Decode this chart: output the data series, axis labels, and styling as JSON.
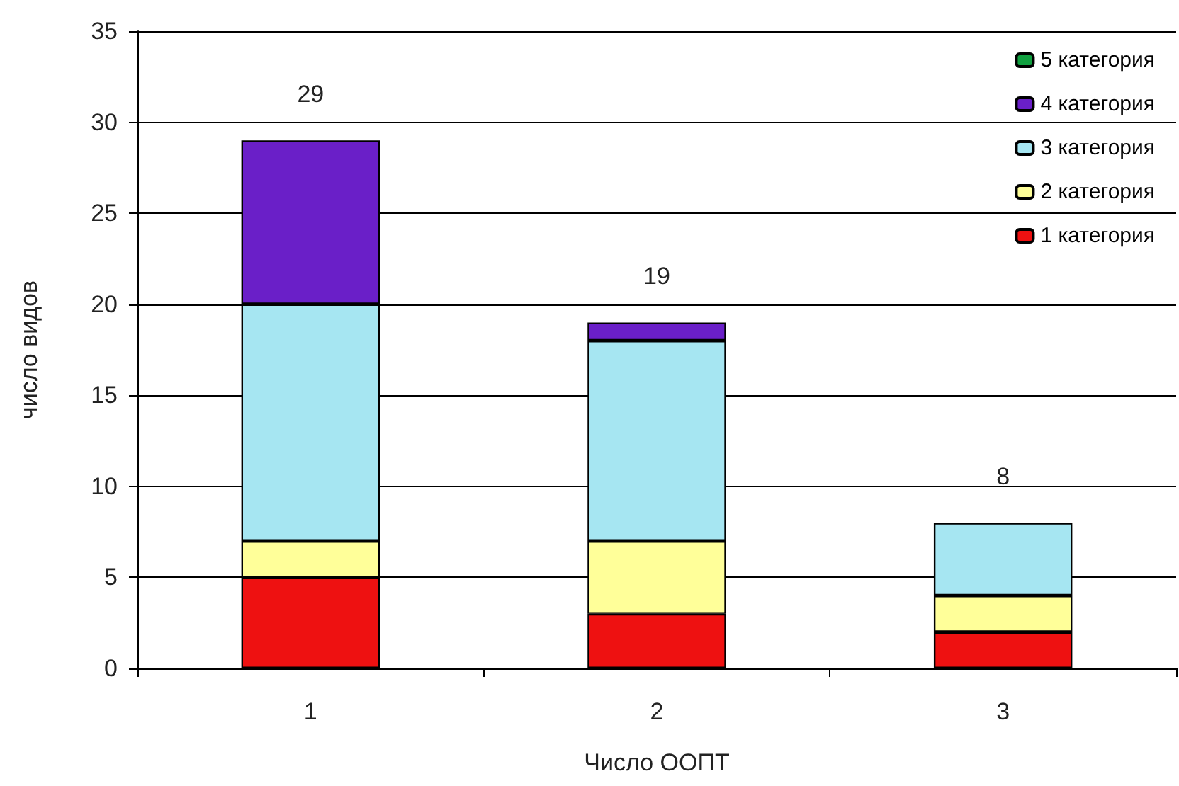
{
  "chart_data": {
    "type": "bar",
    "stacked": true,
    "xlabel": "Число ООПТ",
    "ylabel": "число видов",
    "categories": [
      "1",
      "2",
      "3"
    ],
    "series": [
      {
        "name": "1 категория",
        "color": "#ee1111",
        "values": [
          5,
          3,
          2
        ]
      },
      {
        "name": "2 категория",
        "color": "#ffff99",
        "values": [
          2,
          4,
          2
        ]
      },
      {
        "name": "3 категория",
        "color": "#a6e6f2",
        "values": [
          13,
          11,
          4
        ]
      },
      {
        "name": "4 категория",
        "color": "#6a1fc8",
        "values": [
          9,
          1,
          0
        ]
      },
      {
        "name": "5 категория",
        "color": "#11a040",
        "values": [
          0,
          0,
          0
        ]
      }
    ],
    "totals": [
      "29",
      "19",
      "8"
    ],
    "ylim": [
      0,
      35
    ],
    "yticks": [
      0,
      5,
      10,
      15,
      20,
      25,
      30,
      35
    ],
    "grid": "y",
    "legend": "top right"
  }
}
